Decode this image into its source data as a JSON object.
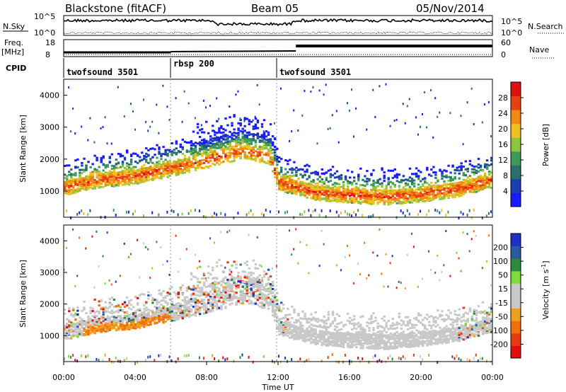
{
  "header": {
    "radar": "Blackstone (fitACF)",
    "beam": "Beam 05",
    "date": "05/Nov/2014"
  },
  "noise_panel": {
    "left_label": "N.Sky",
    "right_label": "N.Search",
    "left_ticks": [
      "10^5",
      "10^0"
    ],
    "right_ticks": [
      "10^5",
      "10^0"
    ]
  },
  "freq_panel": {
    "left_label_1": "Freq.",
    "left_label_2": "[MHz]",
    "right_label": "Nave",
    "left_ticks": [
      "18",
      "8"
    ],
    "right_ticks": [
      "60",
      "0"
    ]
  },
  "cpid_panel": {
    "label": "CPID",
    "programs": [
      {
        "name": "twofsound 3501",
        "start_h": 0,
        "end_h": 6
      },
      {
        "name": "rbsp 200",
        "start_h": 6,
        "end_h": 12
      },
      {
        "name": "twofsound 3501",
        "start_h": 12,
        "end_h": 24
      }
    ]
  },
  "x_axis": {
    "label": "Time UT",
    "ticks": [
      "00:00",
      "04:00",
      "08:00",
      "12:00",
      "16:00",
      "20:00",
      "00:00"
    ]
  },
  "colors": {
    "power": [
      "#1a1aff",
      "#1c3fb0",
      "#2b6e6e",
      "#3d9a5a",
      "#8cc63f",
      "#f0c020",
      "#f08a10",
      "#e84010",
      "#e01010"
    ],
    "velocity": [
      "#2030c0",
      "#2c5aa0",
      "#2c8a3e",
      "#7cdc3c",
      "#c8c8c8",
      "#c8c8c8",
      "#f0a020",
      "#f07010",
      "#e83a10",
      "#e01010"
    ]
  },
  "chart_data": [
    {
      "type": "heatmap",
      "title": "Power",
      "ylabel": "Slant Range [km]",
      "xlabel": "Time UT",
      "xlim": [
        0,
        24
      ],
      "ylim": [
        180,
        4500
      ],
      "y_ticks": [
        "1000",
        "2000",
        "3000",
        "4000"
      ],
      "colorbar_label": "Power [dB]",
      "colorbar_ticks": [
        "4",
        "8",
        "12",
        "16",
        "20",
        "24",
        "28"
      ],
      "colorbar_range": [
        0,
        32
      ],
      "ground_scatter_band_km": [
        {
          "t": 0,
          "km": 1150
        },
        {
          "t": 2,
          "km": 1400
        },
        {
          "t": 4,
          "km": 1500
        },
        {
          "t": 6,
          "km": 1750
        },
        {
          "t": 8,
          "km": 2000
        },
        {
          "t": 10,
          "km": 2300
        },
        {
          "t": 11.5,
          "km": 2100
        },
        {
          "t": 12,
          "km": 1300
        },
        {
          "t": 14,
          "km": 1000
        },
        {
          "t": 16,
          "km": 900
        },
        {
          "t": 18,
          "km": 850
        },
        {
          "t": 20,
          "km": 950
        },
        {
          "t": 22,
          "km": 1100
        },
        {
          "t": 24,
          "km": 1400
        }
      ]
    },
    {
      "type": "heatmap",
      "title": "Velocity",
      "ylabel": "Slant Range [km]",
      "xlabel": "Time UT",
      "xlim": [
        0,
        24
      ],
      "ylim": [
        180,
        4500
      ],
      "y_ticks": [
        "1000",
        "2000",
        "3000",
        "4000"
      ],
      "colorbar_label": "Velocity [m s^-1]",
      "colorbar_ticks": [
        "200",
        "100",
        "50",
        "15",
        "-15",
        "-50",
        "-100",
        "-200"
      ],
      "colorbar_range": [
        -250,
        250
      ]
    }
  ]
}
